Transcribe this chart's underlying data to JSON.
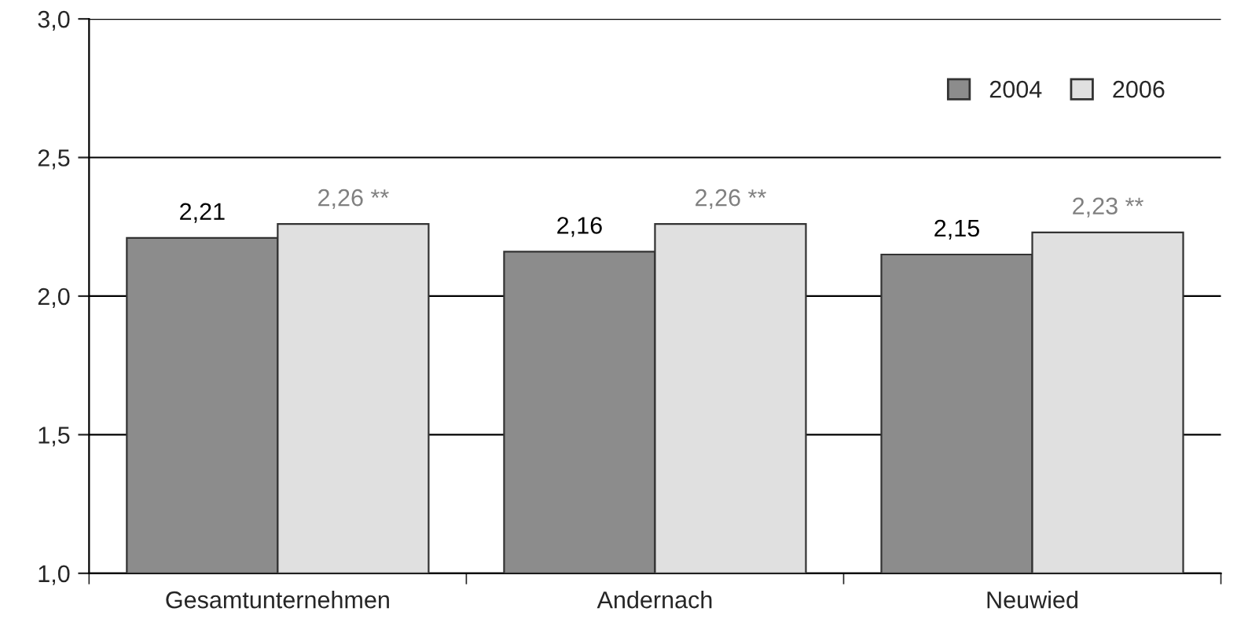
{
  "chart_data": {
    "type": "bar",
    "categories": [
      "Gesamtunternehmen",
      "Andernach",
      "Neuwied"
    ],
    "series": [
      {
        "name": "2004",
        "color": "#8c8c8c",
        "values": [
          2.21,
          2.16,
          2.15
        ],
        "value_labels": [
          "2,21",
          "2,16",
          "2,15"
        ]
      },
      {
        "name": "2006",
        "color": "#e0e0e0",
        "values": [
          2.26,
          2.26,
          2.23
        ],
        "value_labels": [
          "2,26 **",
          "2,26 **",
          "2,23 **"
        ]
      }
    ],
    "ylim": [
      1.0,
      3.0
    ],
    "yticks": [
      {
        "value": 1.0,
        "label": "1,0"
      },
      {
        "value": 1.5,
        "label": "1,5"
      },
      {
        "value": 2.0,
        "label": "2,0"
      },
      {
        "value": 2.5,
        "label": "2,5"
      },
      {
        "value": 3.0,
        "label": "3,0"
      }
    ],
    "grid": "y",
    "legend": "top right"
  }
}
